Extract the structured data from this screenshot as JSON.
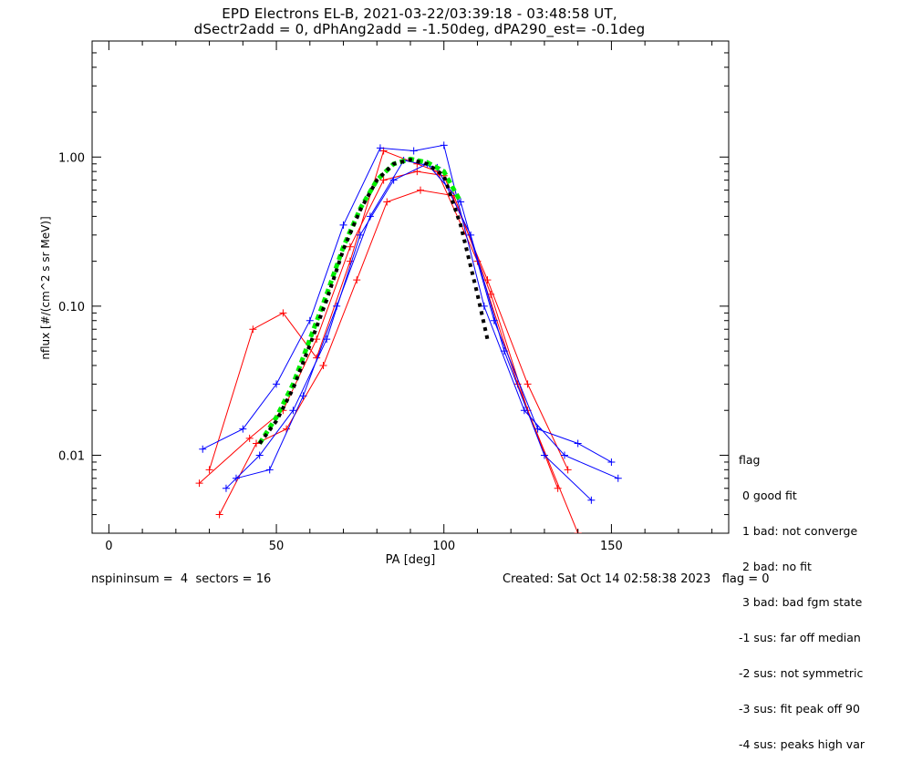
{
  "chart_data": {
    "type": "line",
    "title": "EPD Electrons EL-B, 2021-03-22/03:39:18 - 03:48:58 UT,",
    "subtitle": "dSectr2add = 0, dPhAng2add = -1.50deg, dPA290_est=  -0.1deg",
    "xlabel": "PA [deg]",
    "ylabel": "nflux [#/(cm^2 s sr MeV)]",
    "xlim": [
      -5,
      185
    ],
    "ylim": [
      0.003,
      6
    ],
    "yscale": "log",
    "x_ticks": [
      "0",
      "50",
      "100",
      "150"
    ],
    "y_ticks": [
      "0.01",
      "0.10",
      "1.00"
    ],
    "colors": {
      "red": "#ff0000",
      "blue": "#0000ff",
      "green": "#00ee00",
      "black": "#000000"
    },
    "series": [
      {
        "color": "red",
        "x": [
          27,
          42,
          52,
          62,
          72,
          82,
          92,
          100,
          113,
          125,
          137
        ],
        "y": [
          0.0065,
          0.013,
          0.02,
          0.06,
          0.25,
          0.7,
          0.8,
          0.75,
          0.15,
          0.03,
          0.008
        ]
      },
      {
        "color": "red",
        "x": [
          30,
          43,
          52,
          62,
          72,
          82,
          92,
          98,
          110,
          122,
          134
        ],
        "y": [
          0.008,
          0.07,
          0.09,
          0.045,
          0.2,
          1.1,
          0.9,
          0.8,
          0.2,
          0.03,
          0.006
        ]
      },
      {
        "color": "red",
        "x": [
          33,
          44,
          53,
          64,
          74,
          83,
          93,
          103,
          114,
          125,
          140
        ],
        "y": [
          0.004,
          0.012,
          0.015,
          0.04,
          0.15,
          0.5,
          0.6,
          0.55,
          0.12,
          0.02,
          0.003
        ]
      },
      {
        "color": "blue",
        "x": [
          28,
          40,
          50,
          60,
          70,
          81,
          91,
          100,
          112,
          124,
          136,
          152
        ],
        "y": [
          0.011,
          0.015,
          0.03,
          0.08,
          0.35,
          1.15,
          1.1,
          1.2,
          0.1,
          0.02,
          0.01,
          0.007
        ]
      },
      {
        "color": "blue",
        "x": [
          35,
          45,
          55,
          65,
          75,
          85,
          95,
          105,
          115,
          128,
          140,
          150
        ],
        "y": [
          0.006,
          0.01,
          0.02,
          0.06,
          0.3,
          0.7,
          0.9,
          0.5,
          0.08,
          0.015,
          0.012,
          0.009
        ]
      },
      {
        "color": "blue",
        "x": [
          38,
          48,
          58,
          68,
          78,
          88,
          98,
          108,
          118,
          130,
          144
        ],
        "y": [
          0.007,
          0.008,
          0.025,
          0.1,
          0.4,
          0.95,
          0.85,
          0.3,
          0.05,
          0.01,
          0.005
        ]
      },
      {
        "color": "green",
        "x": [
          45,
          50,
          55,
          60,
          65,
          70,
          75,
          80,
          85,
          90,
          95,
          100,
          105
        ],
        "y": [
          0.012,
          0.018,
          0.03,
          0.06,
          0.12,
          0.25,
          0.45,
          0.7,
          0.9,
          0.97,
          0.92,
          0.8,
          0.5
        ]
      },
      {
        "color": "black",
        "x": [
          45,
          50,
          55,
          60,
          65,
          70,
          75,
          80,
          85,
          90,
          95,
          100,
          105,
          110,
          113
        ],
        "y": [
          0.012,
          0.017,
          0.028,
          0.055,
          0.11,
          0.24,
          0.44,
          0.7,
          0.9,
          0.96,
          0.9,
          0.75,
          0.35,
          0.12,
          0.06
        ]
      }
    ],
    "legend": {
      "title": "flag",
      "items": [
        " 0 good fit",
        " 1 bad: not converge",
        " 2 bad: no fit",
        " 3 bad: bad fgm state",
        "-1 sus: far off median",
        "-2 sus: not symmetric",
        "-3 sus: fit peak off 90",
        "-4 sus: peaks high var"
      ]
    }
  },
  "footer": {
    "left": "nspininsum =  4  sectors = 16",
    "right": "Created: Sat Oct 14 02:58:38 2023   flag = 0"
  }
}
